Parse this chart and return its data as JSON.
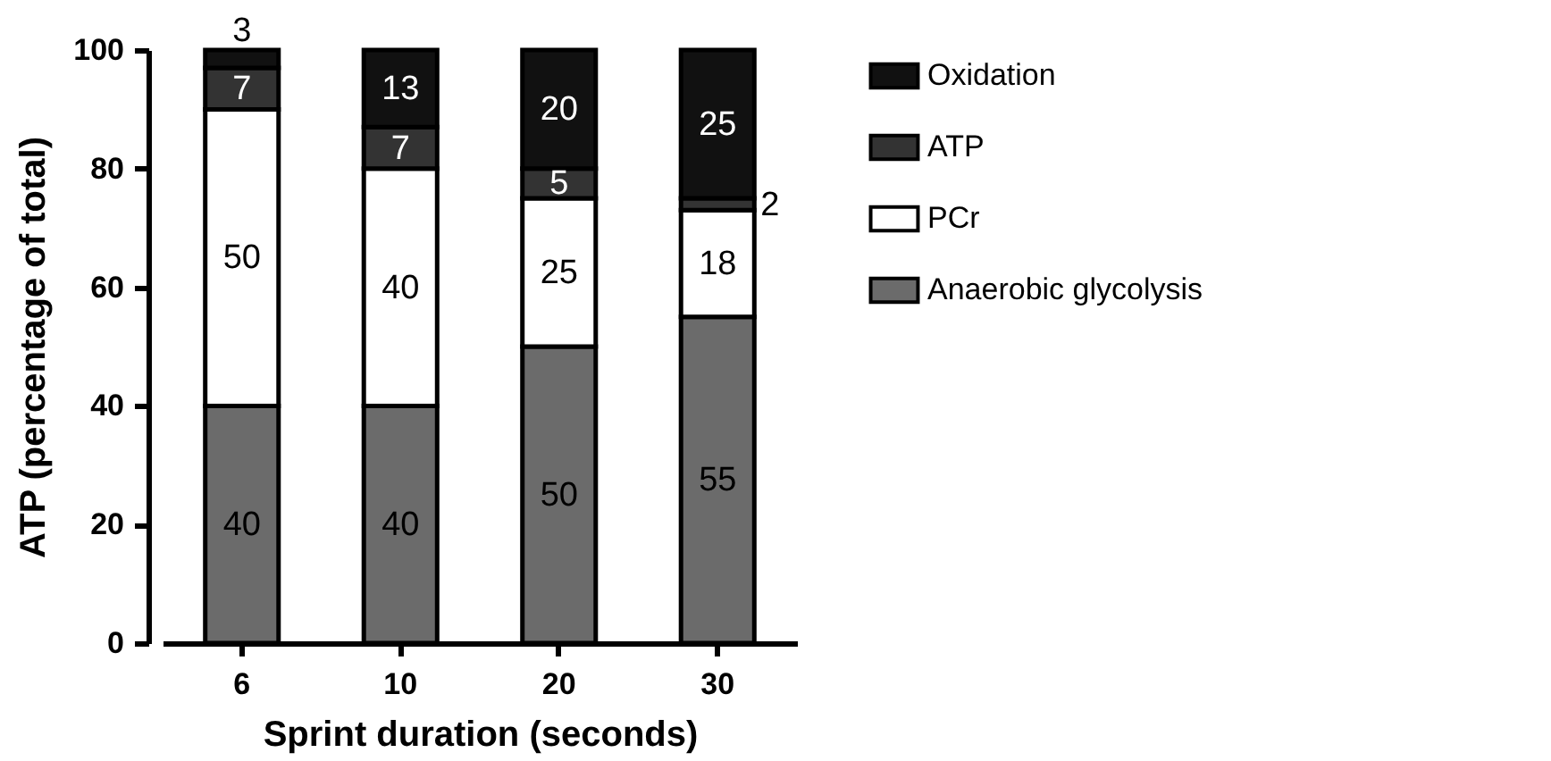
{
  "chart_data": {
    "type": "bar",
    "stacked": true,
    "xlabel": "Sprint duration (seconds)",
    "ylabel": "ATP (percentage of total)",
    "categories": [
      "6",
      "10",
      "20",
      "30"
    ],
    "series": [
      {
        "name": "Anaerobic glycolysis",
        "color": "#6b6b6b",
        "values": [
          40,
          40,
          50,
          55
        ]
      },
      {
        "name": "PCr",
        "color": "#ffffff",
        "values": [
          50,
          40,
          25,
          18
        ]
      },
      {
        "name": "ATP",
        "color": "#333333",
        "values": [
          7,
          7,
          5,
          2
        ]
      },
      {
        "name": "Oxidation",
        "color": "#111111",
        "values": [
          3,
          13,
          20,
          25
        ]
      }
    ],
    "ylim": [
      0,
      100
    ],
    "yticks": [
      0,
      20,
      40,
      60,
      80,
      100
    ],
    "grid": false,
    "legend": "right",
    "data_labels": true
  }
}
